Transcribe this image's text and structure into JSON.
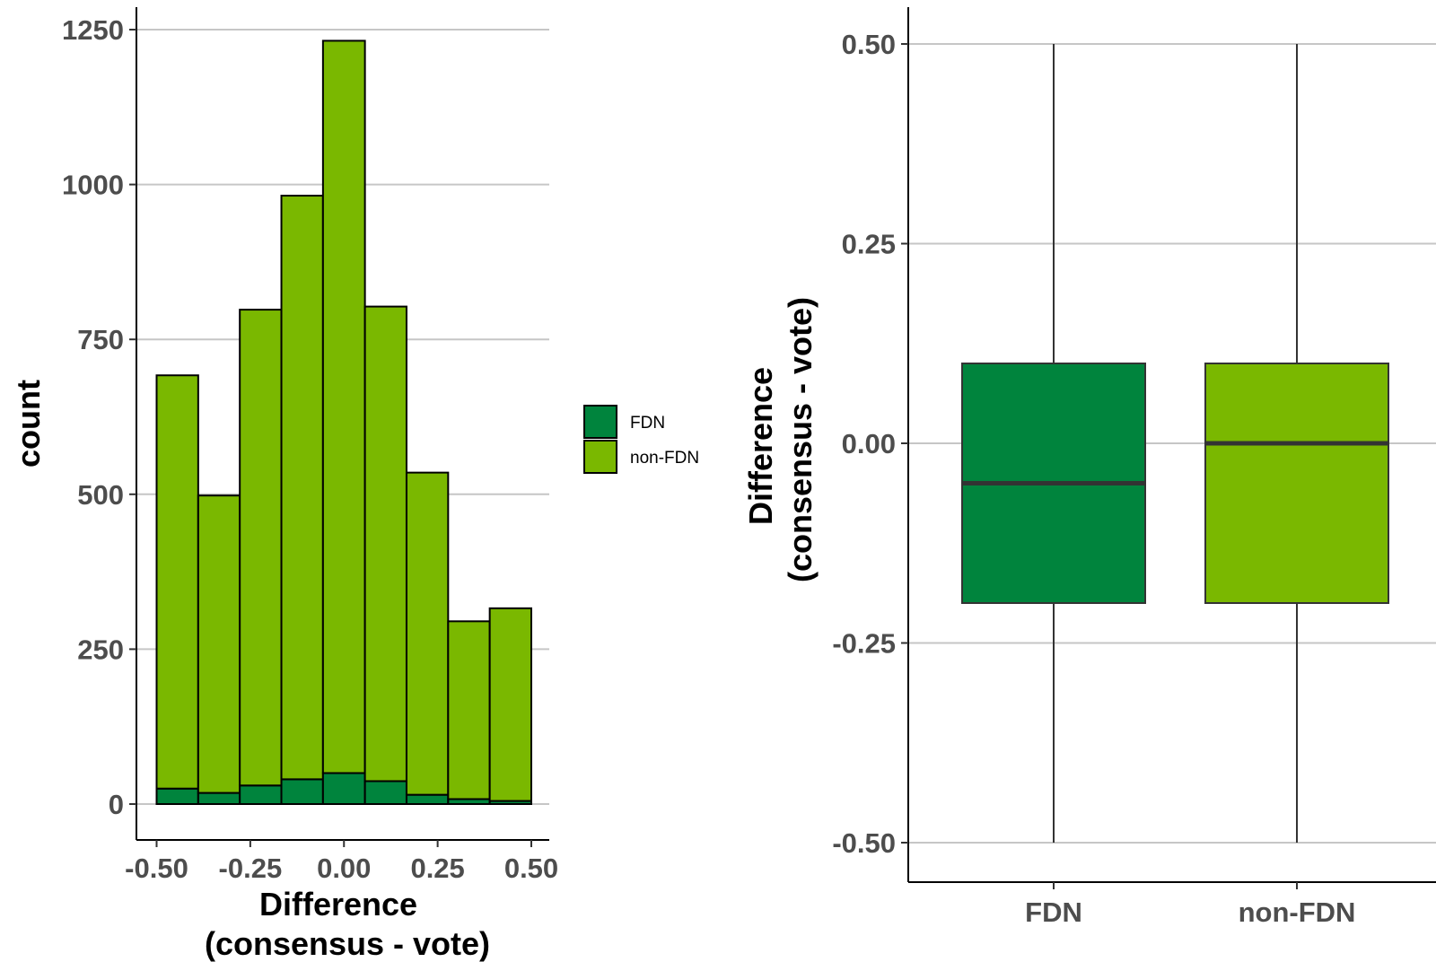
{
  "chart_data": [
    {
      "type": "bar",
      "subtype": "stacked-histogram",
      "title": "",
      "xlabel_lines": [
        "Difference",
        "(consensus - vote)"
      ],
      "ylabel": "count",
      "xlim": [
        -0.55,
        0.55
      ],
      "ylim": [
        0,
        1250
      ],
      "xticks": [
        -0.5,
        -0.25,
        0.0,
        0.25,
        0.5
      ],
      "xtick_labels": [
        "-0.50",
        "-0.25",
        "0.00",
        "0.25",
        "0.50"
      ],
      "yticks": [
        0,
        250,
        500,
        750,
        1000,
        1250
      ],
      "ytick_labels": [
        "0",
        "250",
        "500",
        "750",
        "1000",
        "1250"
      ],
      "bin_edges": [
        -0.5,
        -0.389,
        -0.278,
        -0.167,
        -0.056,
        0.056,
        0.167,
        0.278,
        0.389,
        0.5
      ],
      "series": [
        {
          "name": "FDN",
          "color": "#00843D",
          "values": [
            25,
            18,
            30,
            40,
            50,
            37,
            15,
            8,
            5
          ]
        },
        {
          "name": "non-FDN",
          "color": "#7AB800",
          "values": [
            667,
            480,
            768,
            942,
            1182,
            766,
            520,
            287,
            311
          ]
        }
      ],
      "grid": "horizontal-major",
      "legend_position": "right",
      "legend": [
        {
          "label": "FDN",
          "color": "#00843D"
        },
        {
          "label": "non-FDN",
          "color": "#7AB800"
        }
      ]
    },
    {
      "type": "box",
      "title": "",
      "xlabel": "",
      "ylabel_lines": [
        "Difference",
        "(consensus - vote)"
      ],
      "ylim": [
        -0.55,
        0.55
      ],
      "yticks": [
        -0.5,
        -0.25,
        0.0,
        0.25,
        0.5
      ],
      "ytick_labels": [
        "-0.50",
        "-0.25",
        "0.00",
        "0.25",
        "0.50"
      ],
      "categories": [
        "FDN",
        "non-FDN"
      ],
      "boxes": [
        {
          "category": "FDN",
          "color": "#00843D",
          "min": -0.5,
          "q1": -0.2,
          "median": -0.05,
          "q3": 0.1,
          "max": 0.5
        },
        {
          "category": "non-FDN",
          "color": "#7AB800",
          "min": -0.5,
          "q1": -0.2,
          "median": 0.0,
          "q3": 0.1,
          "max": 0.5
        }
      ],
      "grid": "horizontal-major",
      "legend_position": "none"
    }
  ]
}
